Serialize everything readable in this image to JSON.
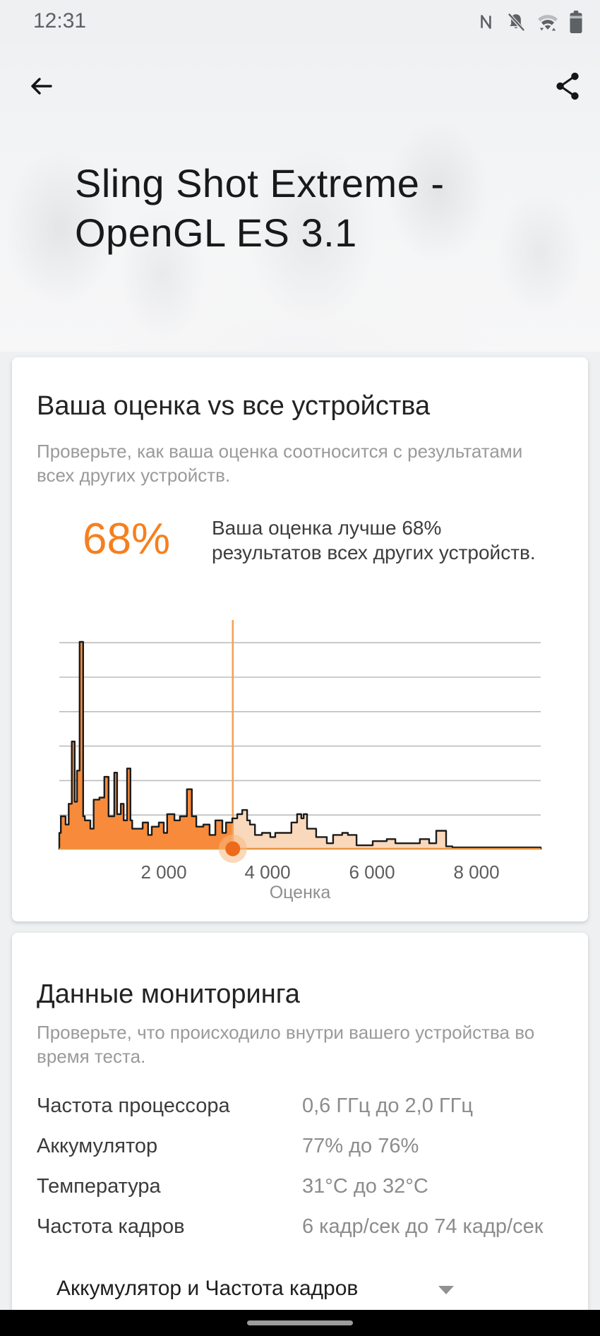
{
  "status_bar": {
    "time": "12:31",
    "icons": [
      "nfc-icon",
      "notifications-off-icon",
      "wifi-icon",
      "battery-icon"
    ]
  },
  "header": {
    "title": "Sling Shot Extreme - OpenGL ES 3.1"
  },
  "score_card": {
    "title": "Ваша оценка vs все устройства",
    "subtitle_lines": [
      "Проверьте, как ваша оценка соотносится с результатами",
      "всех других устройств."
    ],
    "percent": "68%",
    "caption_lines": [
      "Ваша оценка лучше 68%",
      "результатов всех других устройств."
    ]
  },
  "chart_data": {
    "type": "area",
    "subtype": "histogram-distribution",
    "title": "",
    "xlabel": "Оценка",
    "ylabel": "",
    "xlim": [
      0,
      9240
    ],
    "ylim": [
      0,
      105
    ],
    "grid": true,
    "gridline_count": 6,
    "xticks": [
      2000,
      4000,
      6000,
      8000
    ],
    "xtick_labels": [
      "2 000",
      "4 000",
      "6 000",
      "8 000"
    ],
    "marker_score": 3330,
    "better_than_percent": 68,
    "steps_format": "[score_at_which_level_starts, relative_height_0_100]",
    "steps": [
      [
        0,
        8
      ],
      [
        30,
        16
      ],
      [
        120,
        12
      ],
      [
        180,
        22
      ],
      [
        240,
        52
      ],
      [
        295,
        23
      ],
      [
        340,
        38
      ],
      [
        390,
        100
      ],
      [
        458,
        16
      ],
      [
        490,
        14
      ],
      [
        596,
        10
      ],
      [
        660,
        24
      ],
      [
        770,
        25
      ],
      [
        865,
        35
      ],
      [
        945,
        16
      ],
      [
        1055,
        37
      ],
      [
        1110,
        17
      ],
      [
        1180,
        22
      ],
      [
        1235,
        14
      ],
      [
        1300,
        39
      ],
      [
        1365,
        14
      ],
      [
        1400,
        10
      ],
      [
        1600,
        13
      ],
      [
        1705,
        7
      ],
      [
        1775,
        11
      ],
      [
        1910,
        13
      ],
      [
        2005,
        8
      ],
      [
        2070,
        17
      ],
      [
        2210,
        14
      ],
      [
        2315,
        16
      ],
      [
        2450,
        29
      ],
      [
        2545,
        16
      ],
      [
        2630,
        11
      ],
      [
        2765,
        12
      ],
      [
        2885,
        7
      ],
      [
        2995,
        14
      ],
      [
        3130,
        8
      ],
      [
        3200,
        13
      ],
      [
        3320,
        15
      ],
      [
        3415,
        17
      ],
      [
        3510,
        19
      ],
      [
        3605,
        14
      ],
      [
        3660,
        12
      ],
      [
        3755,
        7
      ],
      [
        3890,
        8
      ],
      [
        4050,
        6
      ],
      [
        4145,
        8
      ],
      [
        4455,
        13
      ],
      [
        4565,
        17
      ],
      [
        4645,
        15
      ],
      [
        4690,
        17
      ],
      [
        4755,
        10
      ],
      [
        4930,
        6
      ],
      [
        5135,
        3
      ],
      [
        5255,
        7
      ],
      [
        5430,
        8
      ],
      [
        5540,
        7
      ],
      [
        5705,
        2
      ],
      [
        5815,
        2
      ],
      [
        6015,
        4
      ],
      [
        6285,
        5
      ],
      [
        6450,
        3
      ],
      [
        6610,
        3
      ],
      [
        6920,
        5
      ],
      [
        7100,
        3
      ],
      [
        7235,
        9
      ],
      [
        7425,
        1.5
      ],
      [
        7545,
        1
      ],
      [
        9240,
        0
      ]
    ]
  },
  "monitoring_card": {
    "title": "Данные мониторинга",
    "subtitle_lines": [
      "Проверьте, что происходило внутри вашего устройства во",
      "время теста."
    ],
    "rows": [
      {
        "label": "Частота процессора",
        "value": "0,6 ГГц до 2,0 ГГц"
      },
      {
        "label": "Аккумулятор",
        "value": "77% до 76%"
      },
      {
        "label": "Температура",
        "value": "31°C до 32°C"
      },
      {
        "label": "Частота кадров",
        "value": "6 кадр/сек до 74 кадр/сек"
      }
    ],
    "selector_label": "Аккумулятор и Частота кадров"
  },
  "colors": {
    "accent_orange": "#F5801F",
    "hist_fill_left": "#F78B3B",
    "hist_fill_right": "#FAD8BB",
    "hist_outline": "#1c1c1c",
    "gridline": "#bdbdc0",
    "marker_line": "#F3A259",
    "baseline": "#E99440",
    "marker": "#EC6A1A",
    "marker_halo": "#F6B97F"
  }
}
